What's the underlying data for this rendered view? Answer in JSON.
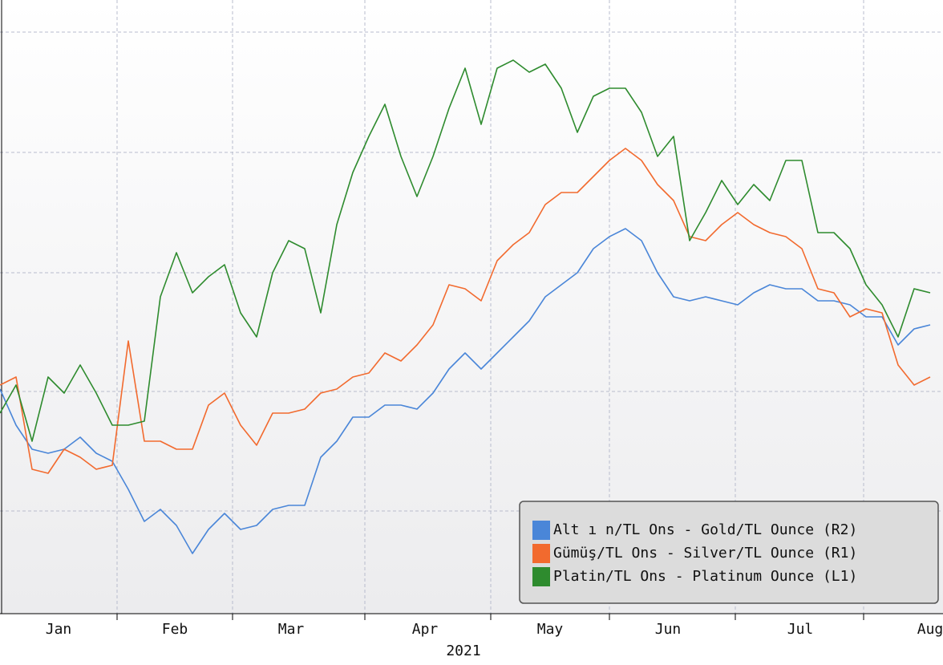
{
  "chart_data": {
    "type": "line",
    "xlabel": "2021",
    "xlim": [
      0,
      58.8
    ],
    "xticks": [
      7.3,
      14.5,
      22.75,
      30.6,
      38,
      45.85,
      53.85
    ],
    "xlabels": [
      {
        "value": 3.65,
        "label": "Jan"
      },
      {
        "value": 10.9,
        "label": "Feb"
      },
      {
        "value": 18.15,
        "label": "Mar"
      },
      {
        "value": 26.5,
        "label": "Apr"
      },
      {
        "value": 34.3,
        "label": "May"
      },
      {
        "value": 41.65,
        "label": "Jun"
      },
      {
        "value": 49.9,
        "label": "Jul"
      },
      {
        "value": 58,
        "label": "Aug"
      }
    ],
    "ylim": [
      35,
      800
    ],
    "yticks": [
      163,
      312,
      460,
      610,
      760
    ],
    "grid": true,
    "legend": "lower right",
    "series": [
      {
        "name": "Alt ı n/TL Ons - Gold/TL Ounce (R2)",
        "color": "#4a86d8",
        "values": [
          315,
          270,
          240,
          235,
          240,
          255,
          235,
          225,
          190,
          150,
          165,
          145,
          110,
          140,
          160,
          140,
          145,
          165,
          170,
          170,
          230,
          250,
          280,
          280,
          295,
          295,
          290,
          310,
          340,
          360,
          340,
          360,
          380,
          400,
          430,
          445,
          460,
          490,
          505,
          515,
          500,
          460,
          430,
          425,
          430,
          425,
          420,
          435,
          445,
          440,
          440,
          425,
          425,
          420,
          405,
          405,
          370,
          390,
          395
        ]
      },
      {
        "name": "Gümüş/TL Ons - Silver/TL Ounce (R1)",
        "color": "#f26a2e",
        "values": [
          320,
          330,
          215,
          210,
          240,
          230,
          215,
          220,
          375,
          250,
          250,
          240,
          240,
          295,
          310,
          270,
          245,
          285,
          285,
          290,
          310,
          315,
          330,
          335,
          360,
          350,
          370,
          395,
          445,
          440,
          425,
          475,
          495,
          510,
          545,
          560,
          560,
          580,
          600,
          615,
          600,
          570,
          550,
          505,
          500,
          520,
          535,
          520,
          510,
          505,
          490,
          440,
          435,
          405,
          415,
          410,
          345,
          320,
          330
        ]
      },
      {
        "name": "Platin/TL Ons - Platinum Ounce (L1)",
        "color": "#2e8b2e",
        "values": [
          285,
          320,
          250,
          330,
          310,
          345,
          310,
          270,
          270,
          275,
          430,
          485,
          435,
          455,
          470,
          410,
          380,
          460,
          500,
          490,
          410,
          520,
          585,
          630,
          670,
          605,
          555,
          605,
          665,
          715,
          645,
          715,
          725,
          710,
          720,
          690,
          635,
          680,
          690,
          690,
          660,
          605,
          630,
          500,
          535,
          575,
          545,
          570,
          550,
          600,
          600,
          510,
          510,
          490,
          445,
          420,
          380,
          440,
          435
        ]
      }
    ]
  }
}
